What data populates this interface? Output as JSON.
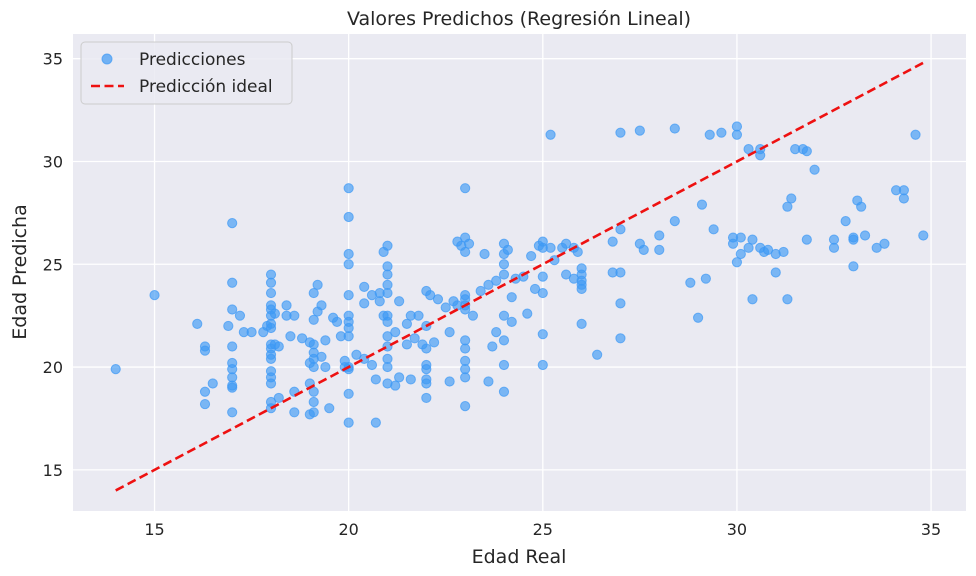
{
  "chart_data": {
    "type": "scatter",
    "title": "Valores Predichos (Regresión Lineal)",
    "xlabel": "Edad Real",
    "ylabel": "Edad Predicha",
    "xlim": [
      12.9,
      35.9
    ],
    "ylim": [
      13.0,
      36.2
    ],
    "xticks": [
      15,
      20,
      25,
      30,
      35
    ],
    "yticks": [
      15,
      20,
      25,
      30,
      35
    ],
    "grid": true,
    "legend_position": "top-left",
    "colors": {
      "points": "#3d99f5",
      "ideal": "#ee1111",
      "background": "#eaeaf2",
      "grid": "#ffffff"
    },
    "series": [
      {
        "name": "Predicciones",
        "type": "scatter",
        "points": [
          [
            14.0,
            19.9
          ],
          [
            15.0,
            23.5
          ],
          [
            16.1,
            22.1
          ],
          [
            16.3,
            21.0
          ],
          [
            16.3,
            20.8
          ],
          [
            16.3,
            18.8
          ],
          [
            16.3,
            18.2
          ],
          [
            16.5,
            19.2
          ],
          [
            16.9,
            22.0
          ],
          [
            17.0,
            27.0
          ],
          [
            17.0,
            24.1
          ],
          [
            17.0,
            22.8
          ],
          [
            17.0,
            21.0
          ],
          [
            17.0,
            20.2
          ],
          [
            17.0,
            19.9
          ],
          [
            17.0,
            19.5
          ],
          [
            17.0,
            19.0
          ],
          [
            17.0,
            19.1
          ],
          [
            17.0,
            17.8
          ],
          [
            17.2,
            22.5
          ],
          [
            17.3,
            21.7
          ],
          [
            17.5,
            21.7
          ],
          [
            17.8,
            21.7
          ],
          [
            17.9,
            22.0
          ],
          [
            18.0,
            24.5
          ],
          [
            18.0,
            24.1
          ],
          [
            18.0,
            23.6
          ],
          [
            18.0,
            23.0
          ],
          [
            18.0,
            22.8
          ],
          [
            18.0,
            22.5
          ],
          [
            18.0,
            22.1
          ],
          [
            18.0,
            21.9
          ],
          [
            18.0,
            21.1
          ],
          [
            18.0,
            20.9
          ],
          [
            18.0,
            20.6
          ],
          [
            18.0,
            20.4
          ],
          [
            18.0,
            19.8
          ],
          [
            18.0,
            19.5
          ],
          [
            18.0,
            19.2
          ],
          [
            18.0,
            18.3
          ],
          [
            18.0,
            18.0
          ],
          [
            18.1,
            22.6
          ],
          [
            18.1,
            21.1
          ],
          [
            18.2,
            18.5
          ],
          [
            18.2,
            21.0
          ],
          [
            18.4,
            22.5
          ],
          [
            18.4,
            23.0
          ],
          [
            18.5,
            21.5
          ],
          [
            18.6,
            22.5
          ],
          [
            18.6,
            18.8
          ],
          [
            18.6,
            17.8
          ],
          [
            18.8,
            21.4
          ],
          [
            19.0,
            21.2
          ],
          [
            19.0,
            20.2
          ],
          [
            19.0,
            19.2
          ],
          [
            19.0,
            17.7
          ],
          [
            19.1,
            23.6
          ],
          [
            19.1,
            22.3
          ],
          [
            19.1,
            21.1
          ],
          [
            19.1,
            20.7
          ],
          [
            19.1,
            20.4
          ],
          [
            19.1,
            20.0
          ],
          [
            19.1,
            18.8
          ],
          [
            19.1,
            18.3
          ],
          [
            19.1,
            17.8
          ],
          [
            19.2,
            24.0
          ],
          [
            19.2,
            22.7
          ],
          [
            19.3,
            23.0
          ],
          [
            19.3,
            20.5
          ],
          [
            19.4,
            21.3
          ],
          [
            19.4,
            20.0
          ],
          [
            19.5,
            18.0
          ],
          [
            19.6,
            22.4
          ],
          [
            19.7,
            22.2
          ],
          [
            19.8,
            21.5
          ],
          [
            19.9,
            20.0
          ],
          [
            19.9,
            20.3
          ],
          [
            20.0,
            28.7
          ],
          [
            20.0,
            27.3
          ],
          [
            20.0,
            25.5
          ],
          [
            20.0,
            25.0
          ],
          [
            20.0,
            23.5
          ],
          [
            20.0,
            22.5
          ],
          [
            20.0,
            22.2
          ],
          [
            20.0,
            21.9
          ],
          [
            20.0,
            21.5
          ],
          [
            20.0,
            20.0
          ],
          [
            20.0,
            19.9
          ],
          [
            20.0,
            18.7
          ],
          [
            20.0,
            17.3
          ],
          [
            20.2,
            20.6
          ],
          [
            20.4,
            20.4
          ],
          [
            20.4,
            23.9
          ],
          [
            20.4,
            23.1
          ],
          [
            20.6,
            20.1
          ],
          [
            20.6,
            23.5
          ],
          [
            20.7,
            17.3
          ],
          [
            20.7,
            19.4
          ],
          [
            20.8,
            23.6
          ],
          [
            20.8,
            23.2
          ],
          [
            20.9,
            25.6
          ],
          [
            20.9,
            22.5
          ],
          [
            21.0,
            25.9
          ],
          [
            21.0,
            24.9
          ],
          [
            21.0,
            24.5
          ],
          [
            21.0,
            24.0
          ],
          [
            21.0,
            23.6
          ],
          [
            21.0,
            22.5
          ],
          [
            21.0,
            22.2
          ],
          [
            21.0,
            21.5
          ],
          [
            21.0,
            21.0
          ],
          [
            21.0,
            20.4
          ],
          [
            21.0,
            20.0
          ],
          [
            21.0,
            19.2
          ],
          [
            21.2,
            19.1
          ],
          [
            21.2,
            21.7
          ],
          [
            21.3,
            23.2
          ],
          [
            21.3,
            19.5
          ],
          [
            21.5,
            22.1
          ],
          [
            21.5,
            21.1
          ],
          [
            21.6,
            22.5
          ],
          [
            21.6,
            19.4
          ],
          [
            21.7,
            21.4
          ],
          [
            21.8,
            22.5
          ],
          [
            21.9,
            21.1
          ],
          [
            22.0,
            20.9
          ],
          [
            22.0,
            23.7
          ],
          [
            22.0,
            22.0
          ],
          [
            22.0,
            20.1
          ],
          [
            22.0,
            19.9
          ],
          [
            22.0,
            19.4
          ],
          [
            22.0,
            19.2
          ],
          [
            22.0,
            18.5
          ],
          [
            22.1,
            23.5
          ],
          [
            22.2,
            21.2
          ],
          [
            22.3,
            23.3
          ],
          [
            22.5,
            22.9
          ],
          [
            22.6,
            21.7
          ],
          [
            22.6,
            19.3
          ],
          [
            22.7,
            23.2
          ],
          [
            22.8,
            26.1
          ],
          [
            22.8,
            23.0
          ],
          [
            22.9,
            25.9
          ],
          [
            23.0,
            28.7
          ],
          [
            23.0,
            26.3
          ],
          [
            23.0,
            25.6
          ],
          [
            23.0,
            23.5
          ],
          [
            23.0,
            23.3
          ],
          [
            23.0,
            23.0
          ],
          [
            23.0,
            22.8
          ],
          [
            23.0,
            21.3
          ],
          [
            23.0,
            20.9
          ],
          [
            23.0,
            20.3
          ],
          [
            23.0,
            19.9
          ],
          [
            23.0,
            19.5
          ],
          [
            23.0,
            18.1
          ],
          [
            23.1,
            26.0
          ],
          [
            23.2,
            22.5
          ],
          [
            23.4,
            23.7
          ],
          [
            23.5,
            25.5
          ],
          [
            23.6,
            24.0
          ],
          [
            23.6,
            19.3
          ],
          [
            23.7,
            21.0
          ],
          [
            23.8,
            24.2
          ],
          [
            23.8,
            21.7
          ],
          [
            24.0,
            26.0
          ],
          [
            24.0,
            25.5
          ],
          [
            24.0,
            25.0
          ],
          [
            24.0,
            24.5
          ],
          [
            24.0,
            22.5
          ],
          [
            24.0,
            21.3
          ],
          [
            24.0,
            20.1
          ],
          [
            24.0,
            18.8
          ],
          [
            24.1,
            25.7
          ],
          [
            24.2,
            23.4
          ],
          [
            24.2,
            22.2
          ],
          [
            24.3,
            24.3
          ],
          [
            24.5,
            24.4
          ],
          [
            24.6,
            22.6
          ],
          [
            24.7,
            25.4
          ],
          [
            24.8,
            23.8
          ],
          [
            24.9,
            25.9
          ],
          [
            25.0,
            26.1
          ],
          [
            25.0,
            25.8
          ],
          [
            25.0,
            24.4
          ],
          [
            25.0,
            23.6
          ],
          [
            25.0,
            21.6
          ],
          [
            25.0,
            20.1
          ],
          [
            25.2,
            31.3
          ],
          [
            25.2,
            25.8
          ],
          [
            25.3,
            25.2
          ],
          [
            25.5,
            25.8
          ],
          [
            25.6,
            26.0
          ],
          [
            25.6,
            24.5
          ],
          [
            25.8,
            25.8
          ],
          [
            25.8,
            24.3
          ],
          [
            25.9,
            25.6
          ],
          [
            26.0,
            24.8
          ],
          [
            26.0,
            24.5
          ],
          [
            26.0,
            24.2
          ],
          [
            26.0,
            24.0
          ],
          [
            26.0,
            23.8
          ],
          [
            26.0,
            22.1
          ],
          [
            26.4,
            20.6
          ],
          [
            26.8,
            26.1
          ],
          [
            26.8,
            24.6
          ],
          [
            27.0,
            31.4
          ],
          [
            27.0,
            26.7
          ],
          [
            27.0,
            24.6
          ],
          [
            27.0,
            23.1
          ],
          [
            27.0,
            21.4
          ],
          [
            27.5,
            31.5
          ],
          [
            27.5,
            26.0
          ],
          [
            27.6,
            25.7
          ],
          [
            28.0,
            26.4
          ],
          [
            28.0,
            25.7
          ],
          [
            28.4,
            31.6
          ],
          [
            28.4,
            27.1
          ],
          [
            28.8,
            24.1
          ],
          [
            29.1,
            27.9
          ],
          [
            29.0,
            22.4
          ],
          [
            29.2,
            24.3
          ],
          [
            29.3,
            31.3
          ],
          [
            29.4,
            26.7
          ],
          [
            29.6,
            31.4
          ],
          [
            29.9,
            26.0
          ],
          [
            29.9,
            26.3
          ],
          [
            30.0,
            31.7
          ],
          [
            30.0,
            31.3
          ],
          [
            30.0,
            25.1
          ],
          [
            30.1,
            26.3
          ],
          [
            30.1,
            25.5
          ],
          [
            30.3,
            25.8
          ],
          [
            30.3,
            30.6
          ],
          [
            30.4,
            26.2
          ],
          [
            30.4,
            23.3
          ],
          [
            30.6,
            30.6
          ],
          [
            30.6,
            30.3
          ],
          [
            30.6,
            25.8
          ],
          [
            30.7,
            25.6
          ],
          [
            30.8,
            25.7
          ],
          [
            31.0,
            25.5
          ],
          [
            31.0,
            24.6
          ],
          [
            31.2,
            25.6
          ],
          [
            31.3,
            23.3
          ],
          [
            31.3,
            27.8
          ],
          [
            31.4,
            28.2
          ],
          [
            31.5,
            30.6
          ],
          [
            31.7,
            30.6
          ],
          [
            31.8,
            30.5
          ],
          [
            31.8,
            26.2
          ],
          [
            32.0,
            29.6
          ],
          [
            32.8,
            27.1
          ],
          [
            32.5,
            26.2
          ],
          [
            32.5,
            25.8
          ],
          [
            33.0,
            26.3
          ],
          [
            33.0,
            26.2
          ],
          [
            33.0,
            24.9
          ],
          [
            33.1,
            28.1
          ],
          [
            33.2,
            27.8
          ],
          [
            33.3,
            26.4
          ],
          [
            33.6,
            25.8
          ],
          [
            33.8,
            26.0
          ],
          [
            34.1,
            28.6
          ],
          [
            34.3,
            28.2
          ],
          [
            34.3,
            28.6
          ],
          [
            34.6,
            31.3
          ],
          [
            34.8,
            26.4
          ]
        ]
      },
      {
        "name": "Predicción ideal",
        "type": "line",
        "style": "dashed",
        "x": [
          14.0,
          34.8
        ],
        "y": [
          14.0,
          34.8
        ]
      }
    ]
  }
}
